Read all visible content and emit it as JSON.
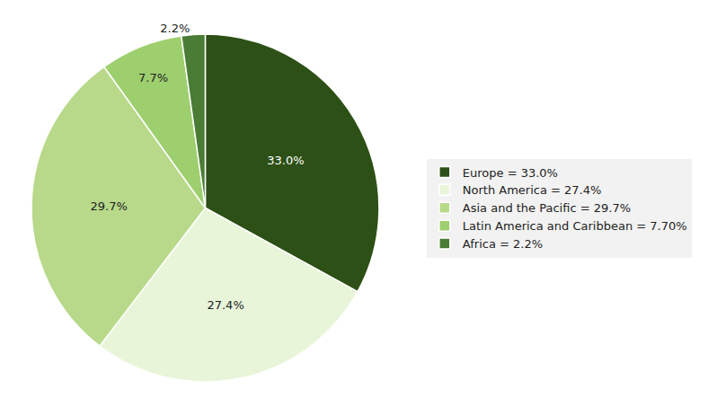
{
  "chart_data": {
    "type": "pie",
    "categories": [
      "Europe = 33.0%",
      "North America = 27.4%",
      "Asia and the Pacific = 29.7%",
      "Latin America and Caribbean = 7.70%",
      "Africa = 2.2%"
    ],
    "values": [
      33.0,
      27.4,
      29.7,
      7.7,
      2.2
    ],
    "value_labels": [
      "33.0%",
      "27.4%",
      "29.7%",
      "7.7%",
      "2.2%"
    ],
    "colors": [
      "#2d5016",
      "#e8f5d9",
      "#b8d98a",
      "#9ecf6e",
      "#4a7c35"
    ],
    "data_labels": true,
    "legend": "right"
  }
}
